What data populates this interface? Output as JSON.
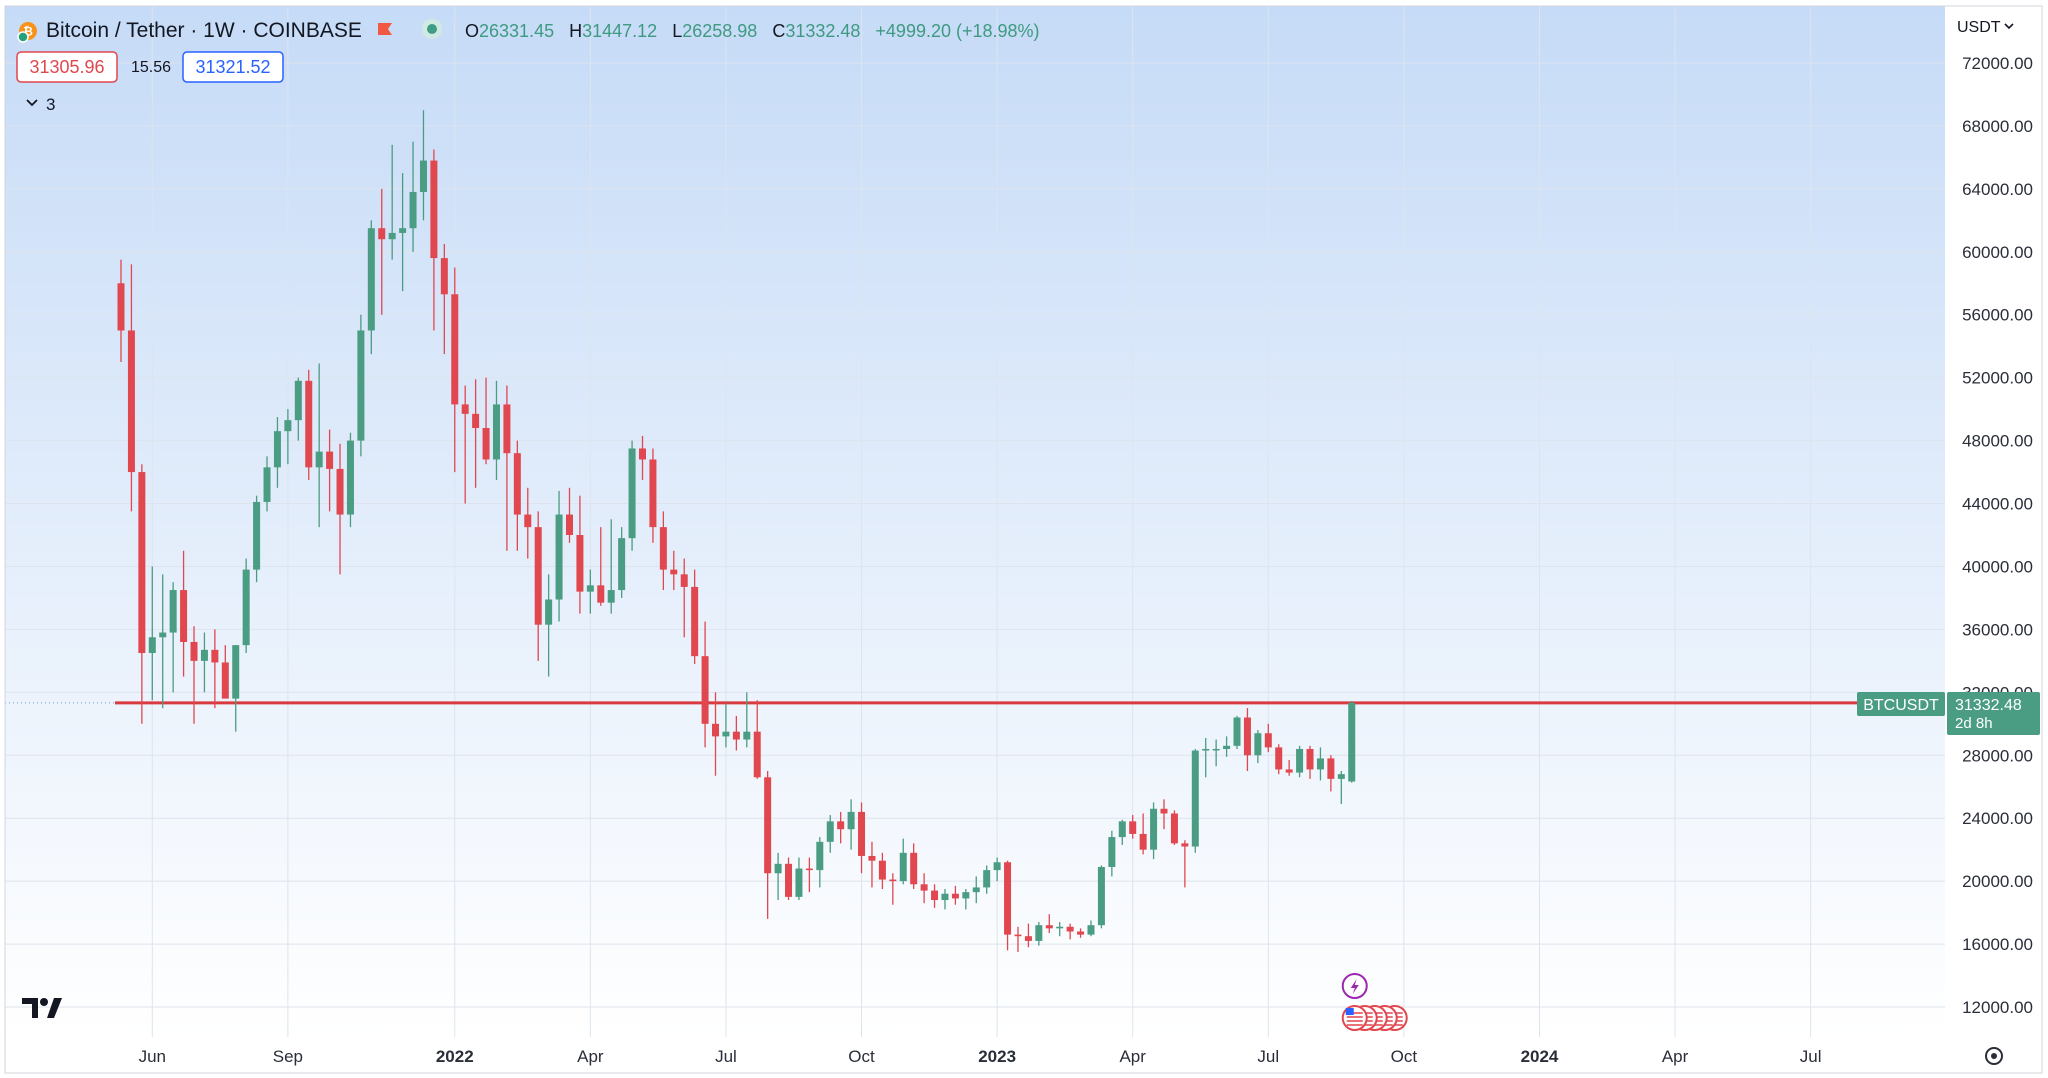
{
  "header": {
    "symbol_title": "Bitcoin / Tether · 1W · COINBASE",
    "ohlc": {
      "o_label": "O",
      "o_value": "26331.45",
      "h_label": "H",
      "h_value": "31447.12",
      "l_label": "L",
      "l_value": "26258.98",
      "c_label": "C",
      "c_value": "31332.48",
      "change": "+4999.20 (+18.98%)"
    },
    "bid": "31305.96",
    "spread": "15.56",
    "ask": "31321.52",
    "indicators_count": "3"
  },
  "currency_selector": "USDT",
  "price_label": {
    "symbol": "BTCUSDT",
    "price": "31332.48",
    "countdown": "2d 8h"
  },
  "colors": {
    "up": "#4a9c82",
    "down": "#e0474f",
    "text": "#131722",
    "axis_text": "#2a2e39",
    "grid": "#dde4ee",
    "gradient_top": "#c3d8f6",
    "gradient_bottom": "#ffffff"
  },
  "icons": [
    "bitcoin-logo-icon",
    "flag-icon",
    "market-status-dot-icon",
    "chevron-down-icon",
    "tradingview-logo-icon",
    "lightning-event-icon",
    "us-flag-event-icon",
    "settings-gear-icon"
  ],
  "chart_data": {
    "type": "candlestick",
    "title": "Bitcoin / Tether · 1W · COINBASE",
    "interval": "1W",
    "ylim": [
      10000,
      74000
    ],
    "y_ticks": [
      12000,
      16000,
      20000,
      24000,
      28000,
      32000,
      36000,
      40000,
      44000,
      48000,
      52000,
      56000,
      60000,
      64000,
      68000,
      72000
    ],
    "y_tick_labels": [
      "12000.00",
      "16000.00",
      "20000.00",
      "24000.00",
      "28000.00",
      "32000.00",
      "36000.00",
      "40000.00",
      "44000.00",
      "48000.00",
      "52000.00",
      "56000.00",
      "60000.00",
      "64000.00",
      "68000.00",
      "72000.00"
    ],
    "x_ticks": [
      {
        "label": "Jun",
        "bold": false
      },
      {
        "label": "Sep",
        "bold": false
      },
      {
        "label": "2022",
        "bold": true
      },
      {
        "label": "Apr",
        "bold": false
      },
      {
        "label": "Jul",
        "bold": false
      },
      {
        "label": "Oct",
        "bold": false
      },
      {
        "label": "2023",
        "bold": true
      },
      {
        "label": "Apr",
        "bold": false
      },
      {
        "label": "Jul",
        "bold": false
      },
      {
        "label": "Oct",
        "bold": false
      },
      {
        "label": "2024",
        "bold": true
      },
      {
        "label": "Apr",
        "bold": false
      },
      {
        "label": "Jul",
        "bold": false
      }
    ],
    "x_tick_week_index": [
      3,
      16,
      32,
      45,
      58,
      71,
      84,
      97,
      110,
      123,
      136,
      149,
      162
    ],
    "horizontal_line": 31332.48,
    "candles": [
      [
        58000,
        59500,
        53000,
        55000
      ],
      [
        55000,
        59200,
        43500,
        46000
      ],
      [
        46000,
        46500,
        30000,
        34500
      ],
      [
        34500,
        40000,
        31500,
        35500
      ],
      [
        35500,
        39500,
        31000,
        35800
      ],
      [
        35800,
        39000,
        32000,
        38500
      ],
      [
        38500,
        41000,
        33000,
        35200
      ],
      [
        35200,
        36200,
        30000,
        34000
      ],
      [
        34000,
        35800,
        32000,
        34700
      ],
      [
        34700,
        36000,
        31000,
        33900
      ],
      [
        33900,
        35000,
        32000,
        31600
      ],
      [
        31600,
        35000,
        29500,
        35000
      ],
      [
        35000,
        40500,
        34500,
        39800
      ],
      [
        39800,
        44500,
        39000,
        44100
      ],
      [
        44100,
        47000,
        43500,
        46300
      ],
      [
        46300,
        49500,
        45000,
        48600
      ],
      [
        48600,
        50000,
        46500,
        49300
      ],
      [
        49300,
        52000,
        48000,
        51800
      ],
      [
        51800,
        52500,
        45500,
        46300
      ],
      [
        46300,
        52900,
        42500,
        47300
      ],
      [
        47300,
        48700,
        43500,
        46200
      ],
      [
        46200,
        47800,
        39500,
        43300
      ],
      [
        43300,
        48500,
        42500,
        48000
      ],
      [
        48000,
        56000,
        47000,
        55000
      ],
      [
        55000,
        62000,
        53500,
        61500
      ],
      [
        61500,
        64000,
        56000,
        60800
      ],
      [
        60800,
        66800,
        59500,
        61200
      ],
      [
        61200,
        65000,
        57500,
        61500
      ],
      [
        61500,
        67000,
        60000,
        63800
      ],
      [
        63800,
        69000,
        62000,
        65800
      ],
      [
        65800,
        66500,
        55000,
        59600
      ],
      [
        59600,
        60500,
        53500,
        57300
      ],
      [
        57300,
        59000,
        46000,
        50300
      ],
      [
        50300,
        51500,
        44000,
        49700
      ],
      [
        49700,
        51900,
        45000,
        48800
      ],
      [
        48800,
        52000,
        46500,
        46800
      ],
      [
        46800,
        51800,
        45500,
        50300
      ],
      [
        50300,
        51500,
        41000,
        47200
      ],
      [
        47200,
        48000,
        41000,
        43300
      ],
      [
        43300,
        45000,
        40500,
        42500
      ],
      [
        42500,
        43500,
        34000,
        36300
      ],
      [
        36300,
        39500,
        33000,
        37900
      ],
      [
        37900,
        44800,
        36500,
        43300
      ],
      [
        43300,
        45000,
        41500,
        42000
      ],
      [
        42000,
        44500,
        37000,
        38400
      ],
      [
        38400,
        39800,
        37000,
        38800
      ],
      [
        38800,
        42500,
        37500,
        37700
      ],
      [
        37700,
        43000,
        37000,
        38500
      ],
      [
        38500,
        42500,
        38000,
        41800
      ],
      [
        41800,
        48000,
        41000,
        47500
      ],
      [
        47500,
        48300,
        45500,
        46800
      ],
      [
        46800,
        47500,
        41500,
        42500
      ],
      [
        42500,
        43500,
        38500,
        39800
      ],
      [
        39800,
        41000,
        38500,
        39500
      ],
      [
        39500,
        40500,
        35500,
        38700
      ],
      [
        38700,
        39800,
        33800,
        34300
      ],
      [
        34300,
        36500,
        28500,
        30000
      ],
      [
        30000,
        32000,
        26700,
        29200
      ],
      [
        29200,
        31300,
        28500,
        29500
      ],
      [
        29500,
        30500,
        28300,
        29000
      ],
      [
        29000,
        32000,
        28500,
        29500
      ],
      [
        29500,
        31500,
        26500,
        26600
      ],
      [
        26600,
        27000,
        17600,
        20500
      ],
      [
        20500,
        21800,
        18800,
        21100
      ],
      [
        21100,
        21500,
        18800,
        19000
      ],
      [
        19000,
        21500,
        18800,
        20800
      ],
      [
        20800,
        21500,
        19300,
        20700
      ],
      [
        20700,
        22800,
        19600,
        22500
      ],
      [
        22500,
        24200,
        21800,
        23800
      ],
      [
        23800,
        24400,
        22400,
        23300
      ],
      [
        23300,
        25200,
        22000,
        24400
      ],
      [
        24400,
        25000,
        20500,
        21600
      ],
      [
        21600,
        22500,
        19600,
        21300
      ],
      [
        21300,
        21800,
        19500,
        20100
      ],
      [
        20100,
        20500,
        18500,
        20000
      ],
      [
        20000,
        22700,
        19800,
        21800
      ],
      [
        21800,
        22400,
        19500,
        19800
      ],
      [
        19800,
        20500,
        18600,
        19400
      ],
      [
        19400,
        19800,
        18300,
        18800
      ],
      [
        18800,
        19500,
        18200,
        19200
      ],
      [
        19200,
        19700,
        18500,
        18900
      ],
      [
        18900,
        19500,
        18200,
        19300
      ],
      [
        19300,
        20300,
        18600,
        19600
      ],
      [
        19600,
        21000,
        19200,
        20700
      ],
      [
        20700,
        21500,
        20000,
        21200
      ],
      [
        21200,
        21300,
        15600,
        16600
      ],
      [
        16600,
        17100,
        15500,
        16500
      ],
      [
        16500,
        17300,
        15800,
        16200
      ],
      [
        16200,
        17400,
        15900,
        17200
      ],
      [
        17200,
        17900,
        16700,
        17000
      ],
      [
        17000,
        17400,
        16500,
        17100
      ],
      [
        17100,
        17300,
        16300,
        16800
      ],
      [
        16800,
        17000,
        16400,
        16600
      ],
      [
        16600,
        17500,
        16500,
        17200
      ],
      [
        17200,
        21000,
        17000,
        20900
      ],
      [
        20900,
        23200,
        20300,
        22800
      ],
      [
        22800,
        23900,
        22300,
        23800
      ],
      [
        23800,
        24200,
        22700,
        23000
      ],
      [
        23000,
        24300,
        21700,
        22000
      ],
      [
        22000,
        25000,
        21400,
        24600
      ],
      [
        24600,
        25200,
        23300,
        24300
      ],
      [
        24300,
        24500,
        22300,
        22400
      ],
      [
        22400,
        22600,
        19600,
        22200
      ],
      [
        22200,
        28400,
        21800,
        28300
      ],
      [
        28300,
        29100,
        26600,
        28400
      ],
      [
        28400,
        29000,
        27300,
        28400
      ],
      [
        28400,
        29200,
        27900,
        28600
      ],
      [
        28600,
        30500,
        28400,
        30400
      ],
      [
        30400,
        31000,
        27000,
        28000
      ],
      [
        28000,
        29600,
        27500,
        29400
      ],
      [
        29400,
        30000,
        28200,
        28500
      ],
      [
        28500,
        28700,
        26800,
        27100
      ],
      [
        27100,
        27700,
        26700,
        26900
      ],
      [
        26900,
        28600,
        26600,
        28400
      ],
      [
        28400,
        28600,
        26500,
        27100
      ],
      [
        27100,
        28500,
        26400,
        27800
      ],
      [
        27800,
        28000,
        25700,
        26500
      ],
      [
        26500,
        27000,
        24900,
        26800
      ],
      [
        26331.45,
        31447.12,
        26258.98,
        31332.48
      ]
    ],
    "event_markers": [
      {
        "type": "lightning-event-icon",
        "week": 118
      },
      {
        "type": "us-flag-event-icon",
        "week": 118,
        "stack_count": 5
      }
    ]
  }
}
